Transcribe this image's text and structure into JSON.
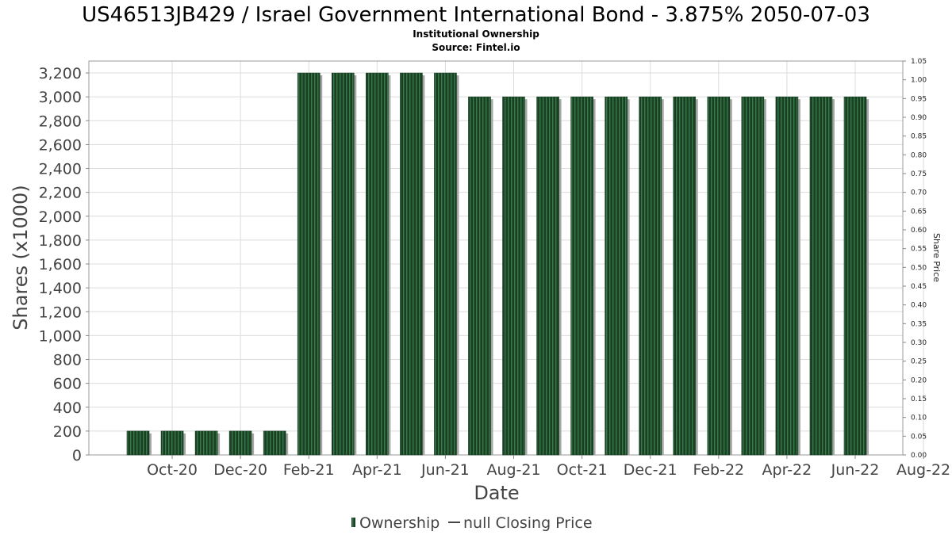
{
  "chart_data": {
    "type": "bar",
    "title": "US46513JB429 / Israel Government International Bond - 3.875% 2050-07-03",
    "subtitle_lines": [
      "Institutional Ownership",
      "Source: Fintel.io"
    ],
    "xlabel": "Date",
    "ylabel": "Shares (x1000)",
    "ylabel_right": "Share Price",
    "ylim": [
      0,
      3300
    ],
    "ylim_right": [
      0,
      1.05
    ],
    "y_ticks": [
      "0",
      "200",
      "400",
      "600",
      "800",
      "1,000",
      "1,200",
      "1,400",
      "1,600",
      "1,800",
      "2,000",
      "2,200",
      "2,400",
      "2,600",
      "2,800",
      "3,000",
      "3,200"
    ],
    "y_ticks_right": [
      "0.00",
      "0.05",
      "0.10",
      "0.15",
      "0.20",
      "0.25",
      "0.30",
      "0.35",
      "0.40",
      "0.45",
      "0.50",
      "0.55",
      "0.60",
      "0.65",
      "0.70",
      "0.75",
      "0.80",
      "0.85",
      "0.90",
      "0.95",
      "1.00",
      "1.05"
    ],
    "x_tick_labels": [
      "Oct-20",
      "Dec-20",
      "Feb-21",
      "Apr-21",
      "Jun-21",
      "Aug-21",
      "Oct-21",
      "Dec-21",
      "Feb-22",
      "Apr-22",
      "Jun-22",
      "Aug-22"
    ],
    "grid": true,
    "legend_position": "bottom",
    "series": [
      {
        "name": "Ownership",
        "color": "#1e4d2b",
        "values": [
          200,
          200,
          200,
          200,
          200,
          3200,
          3200,
          3200,
          3200,
          3200,
          3000,
          3000,
          3000,
          3000,
          3000,
          3000,
          3000,
          3000,
          3000,
          3000,
          3000,
          3000
        ]
      }
    ],
    "legend": [
      {
        "label": "Ownership",
        "color": "#1e4d2b",
        "marker": "bar"
      },
      {
        "label": "null Closing Price",
        "color": "#444444",
        "marker": "line"
      }
    ]
  }
}
